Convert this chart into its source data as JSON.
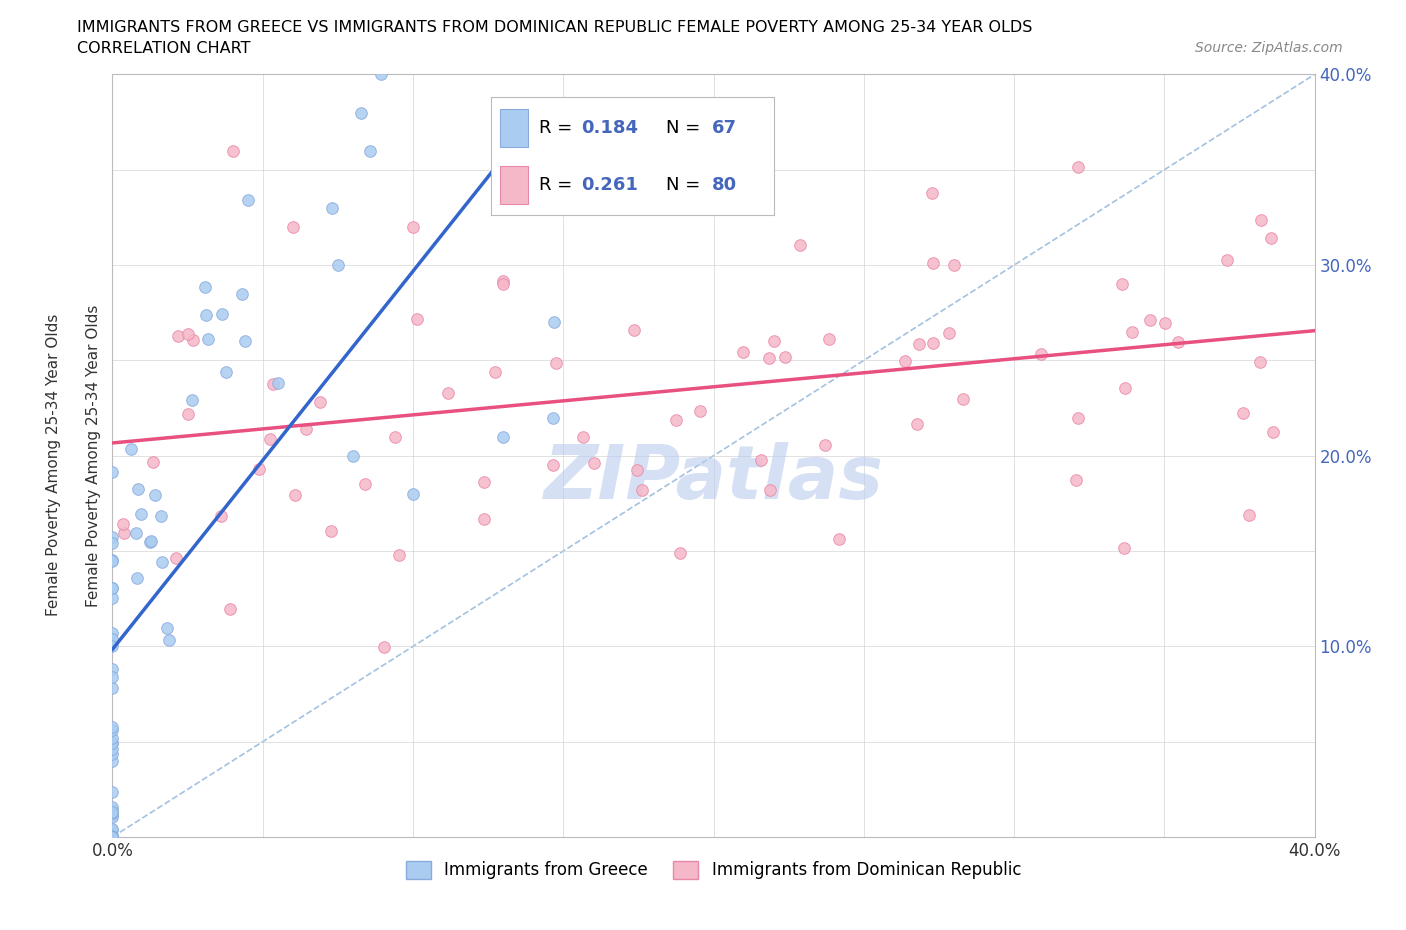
{
  "title_line1": "IMMIGRANTS FROM GREECE VS IMMIGRANTS FROM DOMINICAN REPUBLIC FEMALE POVERTY AMONG 25-34 YEAR OLDS",
  "title_line2": "CORRELATION CHART",
  "source": "Source: ZipAtlas.com",
  "ylabel": "Female Poverty Among 25-34 Year Olds",
  "xlim": [
    0.0,
    0.4
  ],
  "ylim": [
    0.0,
    0.4
  ],
  "xticks": [
    0.0,
    0.05,
    0.1,
    0.15,
    0.2,
    0.25,
    0.3,
    0.35,
    0.4
  ],
  "yticks": [
    0.0,
    0.05,
    0.1,
    0.15,
    0.2,
    0.25,
    0.3,
    0.35,
    0.4
  ],
  "greece_color": "#aaccf0",
  "greece_edge": "#88aadd",
  "dominican_color": "#f5b8c8",
  "dominican_edge": "#e888a8",
  "greece_line_color": "#3366cc",
  "dominican_line_color": "#e85080",
  "diagonal_color": "#99bbdd",
  "R_greece": 0.184,
  "N_greece": 67,
  "R_dominican": 0.261,
  "N_dominican": 80,
  "legend_color": "#4466bb",
  "background_color": "#ffffff",
  "grid_color": "#cccccc",
  "watermark": "ZIPatlas",
  "watermark_color": "#bbccee"
}
